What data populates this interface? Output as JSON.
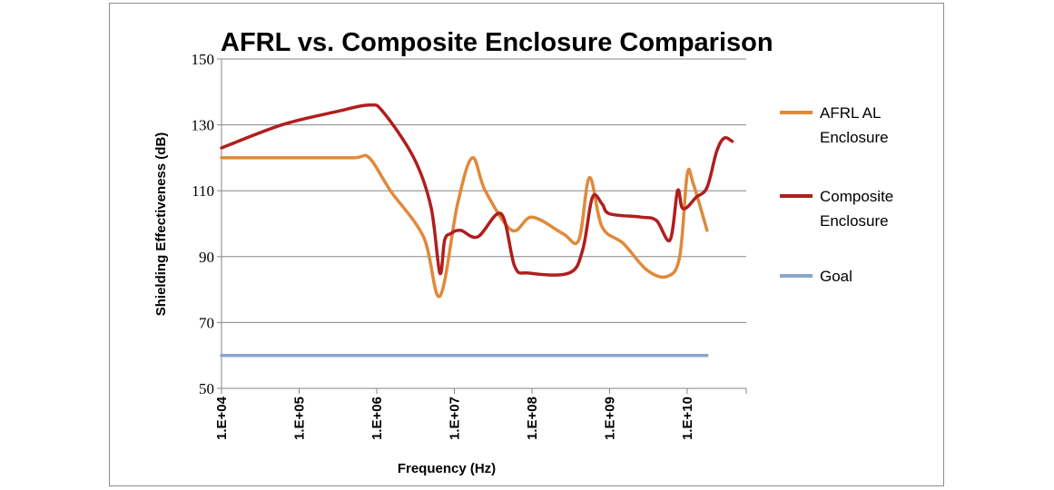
{
  "chart_data": {
    "type": "line",
    "title": "AFRL vs. Composite Enclosure Comparison",
    "xlabel": "Frequency (Hz)",
    "ylabel": "Shielding Effectiveness (dB)",
    "x_scale": "log",
    "xlim": [
      10000,
      60000000000
    ],
    "ylim": [
      50,
      150
    ],
    "y_ticks": [
      50,
      70,
      90,
      110,
      130,
      150
    ],
    "x_ticks": [
      10000,
      100000,
      1000000,
      10000000,
      100000000,
      1000000000,
      10000000000
    ],
    "x_tick_labels": [
      "1.E+04",
      "1.E+05",
      "1.E+06",
      "1.E+07",
      "1.E+08",
      "1.E+09",
      "1.E+10"
    ],
    "grid": "horizontal",
    "legend": "right",
    "series": [
      {
        "name": "AFRL AL Enclosure",
        "name_lines": [
          "AFRL AL",
          "Enclosure"
        ],
        "color": "#e0893a",
        "x": [
          10000,
          100000,
          500000,
          800000,
          1500000,
          4000000,
          6500000,
          11000000,
          17000000,
          25000000,
          55000000,
          100000000,
          250000000,
          400000000,
          550000000,
          800000000,
          1500000000,
          3000000000,
          5500000000,
          8000000000,
          10000000000,
          12000000000,
          18000000000
        ],
        "y": [
          120,
          120,
          120,
          120,
          110,
          96,
          78,
          106,
          120,
          110,
          98,
          102,
          97,
          95,
          114,
          99,
          94,
          86,
          84,
          90,
          115,
          112,
          98
        ]
      },
      {
        "name": "Composite Enclosure",
        "name_lines": [
          "Composite",
          "Enclosure"
        ],
        "color": "#b01e1e",
        "x": [
          10000,
          60000,
          300000,
          800000,
          1200000,
          3000000,
          5000000,
          6500000,
          7500000,
          9000000,
          12000000,
          20000000,
          40000000,
          60000000,
          90000000,
          300000000,
          450000000,
          600000000,
          800000000,
          1000000000,
          2500000000,
          4000000000,
          6000000000,
          7500000000,
          8500000000,
          10000000000,
          13000000000,
          18000000000,
          24000000000,
          30000000000,
          38000000000
        ],
        "y": [
          123,
          130,
          134,
          136,
          134,
          120,
          105,
          85,
          95,
          97,
          98,
          96,
          103,
          87,
          85,
          85,
          92,
          108,
          106,
          103,
          102,
          101,
          95,
          110,
          105,
          105,
          108,
          111,
          122,
          126,
          125
        ]
      },
      {
        "name": "Goal",
        "name_lines": [
          "Goal"
        ],
        "color": "#8aa6c9",
        "x": [
          10000,
          18000000000
        ],
        "y": [
          60,
          60
        ]
      }
    ]
  }
}
